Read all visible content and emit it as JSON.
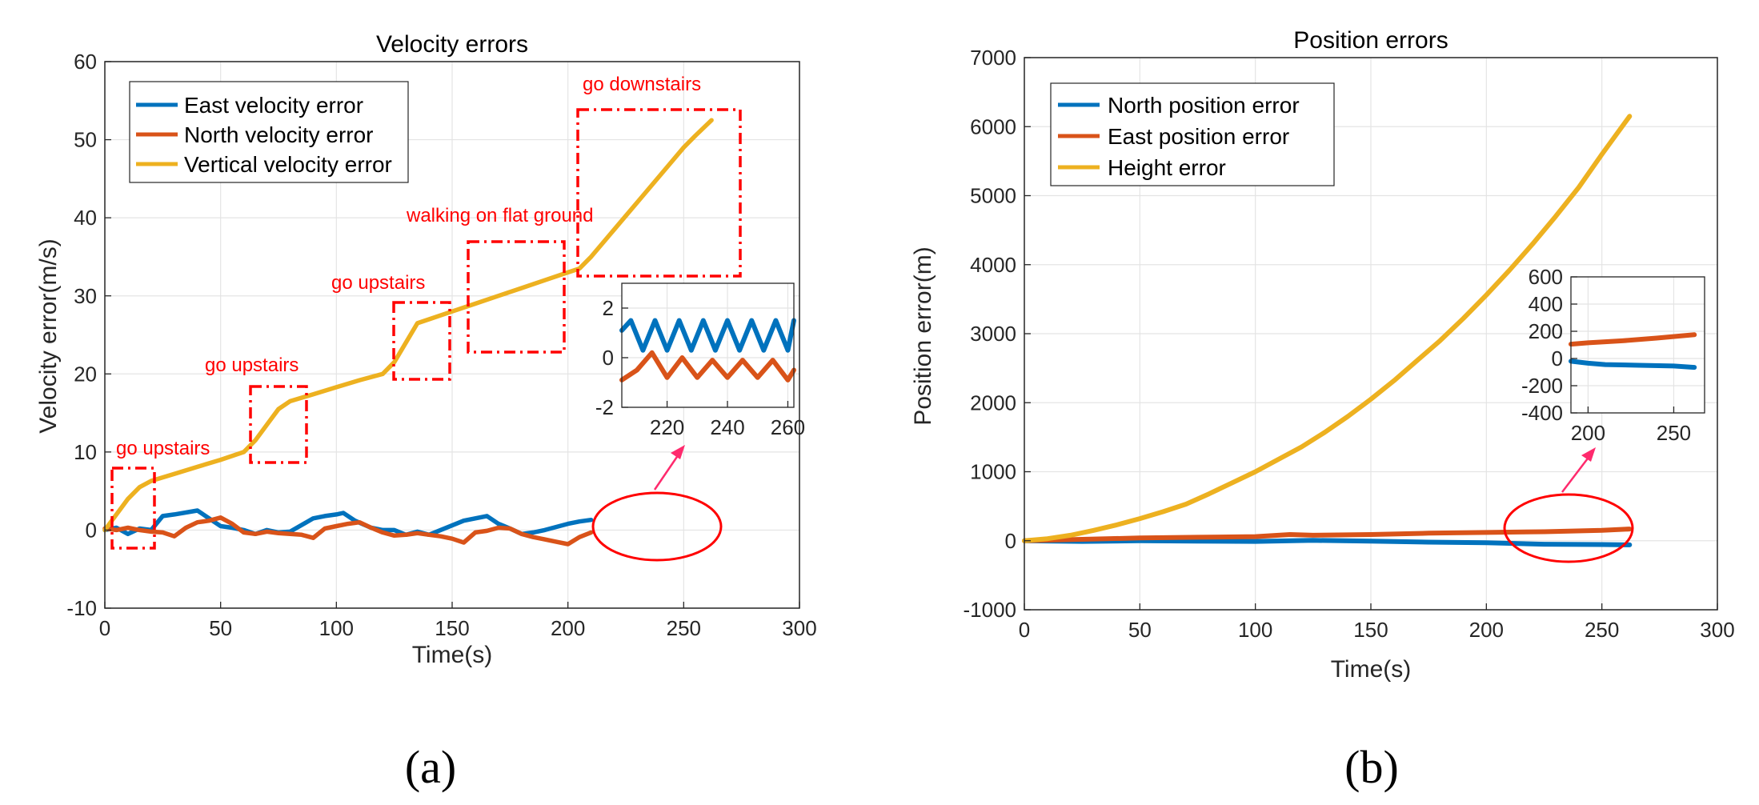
{
  "chart_data": [
    {
      "type": "line",
      "panel": "(a)",
      "title": "Velocity errors",
      "xlabel": "Time(s)",
      "ylabel": "Velocity error(m/s)",
      "xlim": [
        0,
        300
      ],
      "ylim": [
        -10,
        60
      ],
      "xticks": [
        "0",
        "50",
        "100",
        "150",
        "200",
        "250",
        "300"
      ],
      "yticks": [
        "-10",
        "0",
        "10",
        "20",
        "30",
        "40",
        "50",
        "60"
      ],
      "grid": true,
      "legend_position": "top-left",
      "series": [
        {
          "name": "East velocity error",
          "color": "#0072BD",
          "x": [
            0,
            5,
            10,
            15,
            20,
            25,
            30,
            40,
            45,
            50,
            55,
            60,
            65,
            70,
            75,
            80,
            90,
            95,
            100,
            103,
            108,
            115,
            120,
            125,
            130,
            135,
            140,
            145,
            155,
            160,
            165,
            170,
            175,
            180,
            185,
            190,
            200,
            205,
            210
          ],
          "y": [
            0,
            0.3,
            -0.5,
            0.2,
            0,
            1.8,
            2.0,
            2.5,
            1.5,
            0.5,
            0.3,
            0,
            -0.5,
            0,
            -0.3,
            -0.2,
            1.5,
            1.8,
            2.0,
            2.2,
            1.2,
            0.3,
            0,
            0,
            -0.6,
            -0.2,
            -0.6,
            0,
            1.2,
            1.5,
            1.8,
            0.8,
            0.2,
            -0.5,
            -0.3,
            0,
            0.8,
            1.1,
            1.3
          ]
        },
        {
          "name": "North velocity error",
          "color": "#D95319",
          "x": [
            0,
            5,
            10,
            15,
            20,
            25,
            30,
            35,
            40,
            45,
            50,
            55,
            60,
            65,
            70,
            75,
            80,
            85,
            90,
            95,
            100,
            105,
            110,
            115,
            120,
            125,
            130,
            135,
            140,
            145,
            150,
            155,
            160,
            165,
            170,
            175,
            180,
            185,
            190,
            195,
            200,
            205,
            210
          ],
          "y": [
            0.2,
            0,
            0.3,
            0,
            -0.2,
            -0.3,
            -0.8,
            0.3,
            1.0,
            1.2,
            1.6,
            0.8,
            -0.3,
            -0.5,
            -0.2,
            -0.4,
            -0.5,
            -0.6,
            -1.0,
            0.2,
            0.5,
            0.8,
            1.0,
            0.3,
            -0.3,
            -0.7,
            -0.6,
            -0.4,
            -0.6,
            -0.8,
            -1.1,
            -1.6,
            -0.3,
            -0.1,
            0.3,
            0.2,
            -0.5,
            -0.9,
            -1.2,
            -1.5,
            -1.8,
            -0.9,
            -0.3
          ]
        },
        {
          "name": "Vertical velocity error",
          "color": "#EDB120",
          "x": [
            0,
            5,
            10,
            15,
            20,
            30,
            40,
            50,
            60,
            65,
            70,
            75,
            80,
            90,
            100,
            110,
            120,
            125,
            130,
            135,
            140,
            150,
            160,
            170,
            180,
            190,
            200,
            205,
            210,
            220,
            230,
            240,
            250,
            255,
            262
          ],
          "y": [
            0,
            2.0,
            4.0,
            5.5,
            6.3,
            7.2,
            8.1,
            9.0,
            10.0,
            11.5,
            13.5,
            15.5,
            16.5,
            17.4,
            18.3,
            19.2,
            20.0,
            21.5,
            24.0,
            26.5,
            27.0,
            28.0,
            29.0,
            30.0,
            31.0,
            32.0,
            33.0,
            33.5,
            35.0,
            38.5,
            42.0,
            45.5,
            49.0,
            50.5,
            52.5
          ]
        }
      ],
      "annotations": [
        "go upstairs",
        "go upstairs",
        "go upstairs",
        "walking on flat ground",
        "go downstairs"
      ],
      "inset": {
        "xlim": [
          205,
          262
        ],
        "ylim": [
          -2,
          3
        ],
        "xticks": [
          "220",
          "240",
          "260"
        ],
        "yticks": [
          "2",
          "0",
          "-2"
        ],
        "series": [
          {
            "name": "East velocity error",
            "color": "#0072BD",
            "x": [
              205,
              208,
              212,
              216,
              220,
              224,
              228,
              232,
              236,
              240,
              244,
              248,
              252,
              256,
              260,
              262
            ],
            "y": [
              1.1,
              1.5,
              0.3,
              1.5,
              0.3,
              1.5,
              0.3,
              1.5,
              0.3,
              1.5,
              0.3,
              1.5,
              0.3,
              1.5,
              0.3,
              1.5
            ]
          },
          {
            "name": "North velocity error",
            "color": "#D95319",
            "x": [
              205,
              210,
              215,
              220,
              225,
              230,
              235,
              240,
              245,
              250,
              255,
              260,
              262
            ],
            "y": [
              -0.9,
              -0.5,
              0.2,
              -0.8,
              0,
              -0.8,
              -0.1,
              -0.8,
              -0.1,
              -0.8,
              -0.1,
              -0.9,
              -0.5
            ]
          }
        ]
      }
    },
    {
      "type": "line",
      "panel": "(b)",
      "title": "Position errors",
      "xlabel": "Time(s)",
      "ylabel": "Position error(m)",
      "xlim": [
        0,
        300
      ],
      "ylim": [
        -1000,
        7000
      ],
      "xticks": [
        "0",
        "50",
        "100",
        "150",
        "200",
        "250",
        "300"
      ],
      "yticks": [
        "-1000",
        "0",
        "1000",
        "2000",
        "3000",
        "4000",
        "5000",
        "6000",
        "7000"
      ],
      "grid": true,
      "legend_position": "top-left",
      "series": [
        {
          "name": "North position error",
          "color": "#0072BD",
          "x": [
            0,
            25,
            50,
            75,
            100,
            125,
            150,
            175,
            200,
            225,
            250,
            262
          ],
          "y": [
            0,
            -10,
            0,
            -5,
            -10,
            5,
            -5,
            -20,
            -30,
            -50,
            -55,
            -60
          ]
        },
        {
          "name": "East position error",
          "color": "#D95319",
          "x": [
            0,
            25,
            50,
            75,
            100,
            115,
            125,
            150,
            175,
            200,
            225,
            250,
            262
          ],
          "y": [
            0,
            20,
            40,
            50,
            60,
            90,
            80,
            90,
            110,
            120,
            130,
            150,
            170
          ]
        },
        {
          "name": "Height error",
          "color": "#EDB120",
          "x": [
            0,
            10,
            20,
            30,
            40,
            50,
            60,
            70,
            80,
            90,
            100,
            110,
            120,
            130,
            140,
            150,
            160,
            170,
            180,
            190,
            200,
            210,
            220,
            230,
            240,
            250,
            262
          ],
          "y": [
            0,
            30,
            80,
            150,
            230,
            320,
            420,
            530,
            680,
            840,
            1000,
            1180,
            1360,
            1570,
            1800,
            2050,
            2320,
            2610,
            2900,
            3220,
            3560,
            3920,
            4300,
            4700,
            5120,
            5600,
            6150
          ]
        }
      ],
      "inset": {
        "xlim": [
          190,
          268
        ],
        "ylim": [
          -400,
          600
        ],
        "xticks": [
          "200",
          "250"
        ],
        "yticks": [
          "600",
          "400",
          "200",
          "0",
          "-200",
          "-400"
        ],
        "series": [
          {
            "name": "North position error",
            "color": "#0072BD",
            "x": [
              190,
              200,
              210,
              230,
              250,
              262
            ],
            "y": [
              -20,
              -35,
              -45,
              -50,
              -55,
              -65
            ]
          },
          {
            "name": "East position error",
            "color": "#D95319",
            "x": [
              190,
              200,
              220,
              240,
              262
            ],
            "y": [
              105,
              115,
              130,
              150,
              175
            ]
          }
        ]
      }
    }
  ],
  "panel_labels": [
    "(a)",
    "(b)"
  ]
}
